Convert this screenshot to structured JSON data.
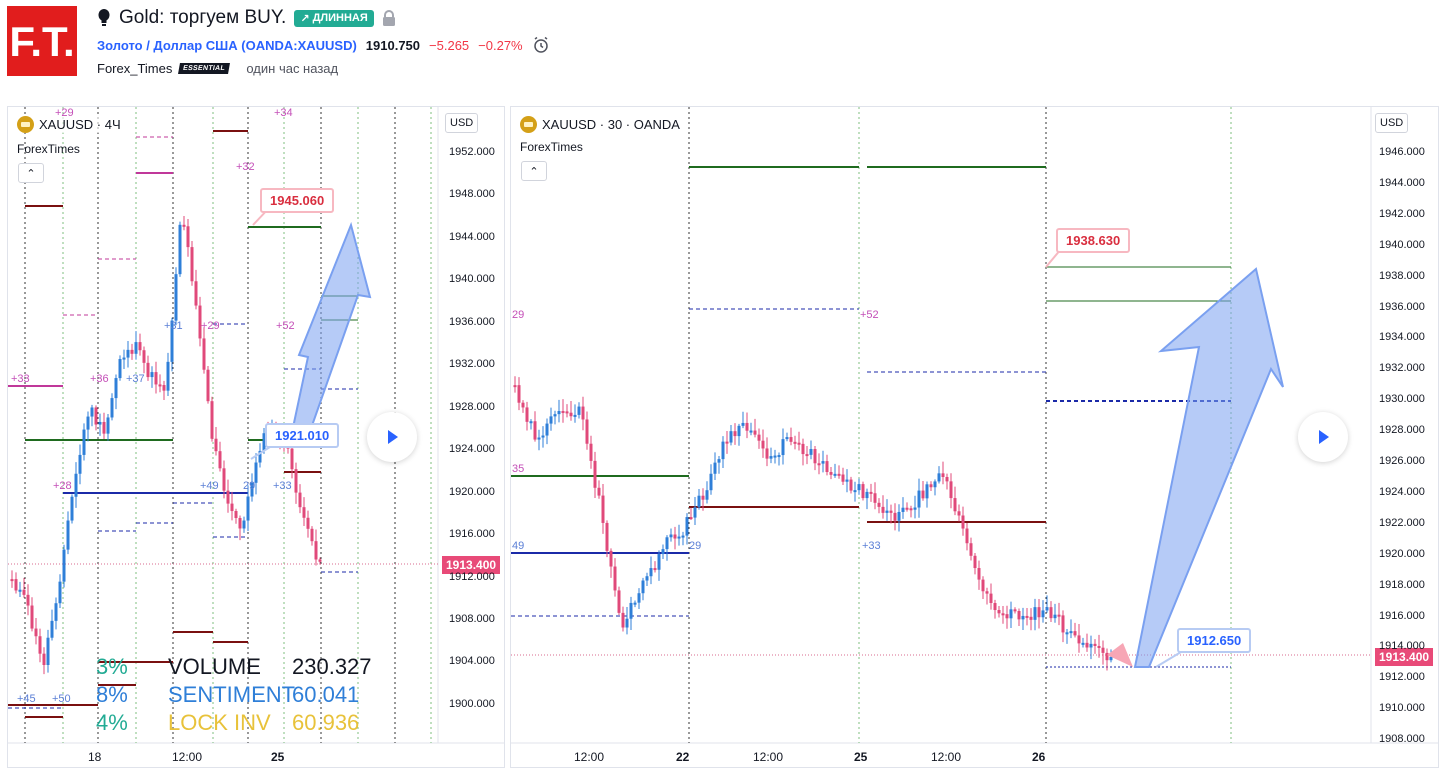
{
  "header": {
    "idea_title": "Gold: торгуем BUY.",
    "badge_long": "ДЛИННАЯ",
    "symbol_full": "Золото / Доллар США",
    "symbol_code": "(OANDA:XAUUSD)",
    "price": "1910.750",
    "change": "−5.265",
    "change_pct": "−0.27%",
    "author": "Forex_Times",
    "author_badge": "ESSENTIAL",
    "time_ago": "один час назад"
  },
  "colors": {
    "logo_red": "#e11d1d",
    "accent_blue": "#2962ff",
    "negative": "#f23645",
    "long_green": "#22ab94",
    "candle_up": "#2f7fd8",
    "candle_down": "#e0497a"
  },
  "left_chart": {
    "legend": "XAUUSD · 4Ч",
    "indicator": "ForexTimes",
    "currency": "USD",
    "y_ticks": [
      "1952.000",
      "1948.000",
      "1944.000",
      "1940.000",
      "1936.000",
      "1932.000",
      "1928.000",
      "1924.000",
      "1920.000",
      "1916.000",
      "1912.000",
      "1908.000",
      "1904.000",
      "1900.000"
    ],
    "x_ticks": [
      "18",
      "12:00",
      "25"
    ],
    "last_price_label": "1913.400",
    "target_callout": "1945.060",
    "entry_callout": "1921.010",
    "small_labels": [
      "+29",
      "+34",
      "+32",
      "+31",
      "+29",
      "+52",
      "+33",
      "+36",
      "+37",
      "+28",
      "+49",
      "29",
      "+33",
      "+45",
      "+50"
    ],
    "stats": [
      {
        "pct": "3%",
        "name": "VOLUME",
        "value": "230.327"
      },
      {
        "pct": "8%",
        "name": "SENTIMENT",
        "value": "60.041"
      },
      {
        "pct": "4%",
        "name": "LOCK INV",
        "value": "60.936"
      }
    ]
  },
  "right_chart": {
    "legend": "XAUUSD · 30 · OANDA",
    "indicator": "ForexTimes",
    "currency": "USD",
    "y_ticks": [
      "1946.000",
      "1944.000",
      "1942.000",
      "1940.000",
      "1938.000",
      "1936.000",
      "1934.000",
      "1932.000",
      "1930.000",
      "1928.000",
      "1926.000",
      "1924.000",
      "1922.000",
      "1920.000",
      "1918.000",
      "1916.000",
      "1914.000",
      "1912.000",
      "1910.000",
      "1908.000"
    ],
    "x_ticks": [
      "12:00",
      "22",
      "12:00",
      "25",
      "12:00",
      "26"
    ],
    "last_price_label": "1913.400",
    "target_callout": "1938.630",
    "entry_callout": "1912.650",
    "small_labels": [
      "29",
      "+52",
      "35",
      "49",
      "29",
      "+33"
    ]
  }
}
